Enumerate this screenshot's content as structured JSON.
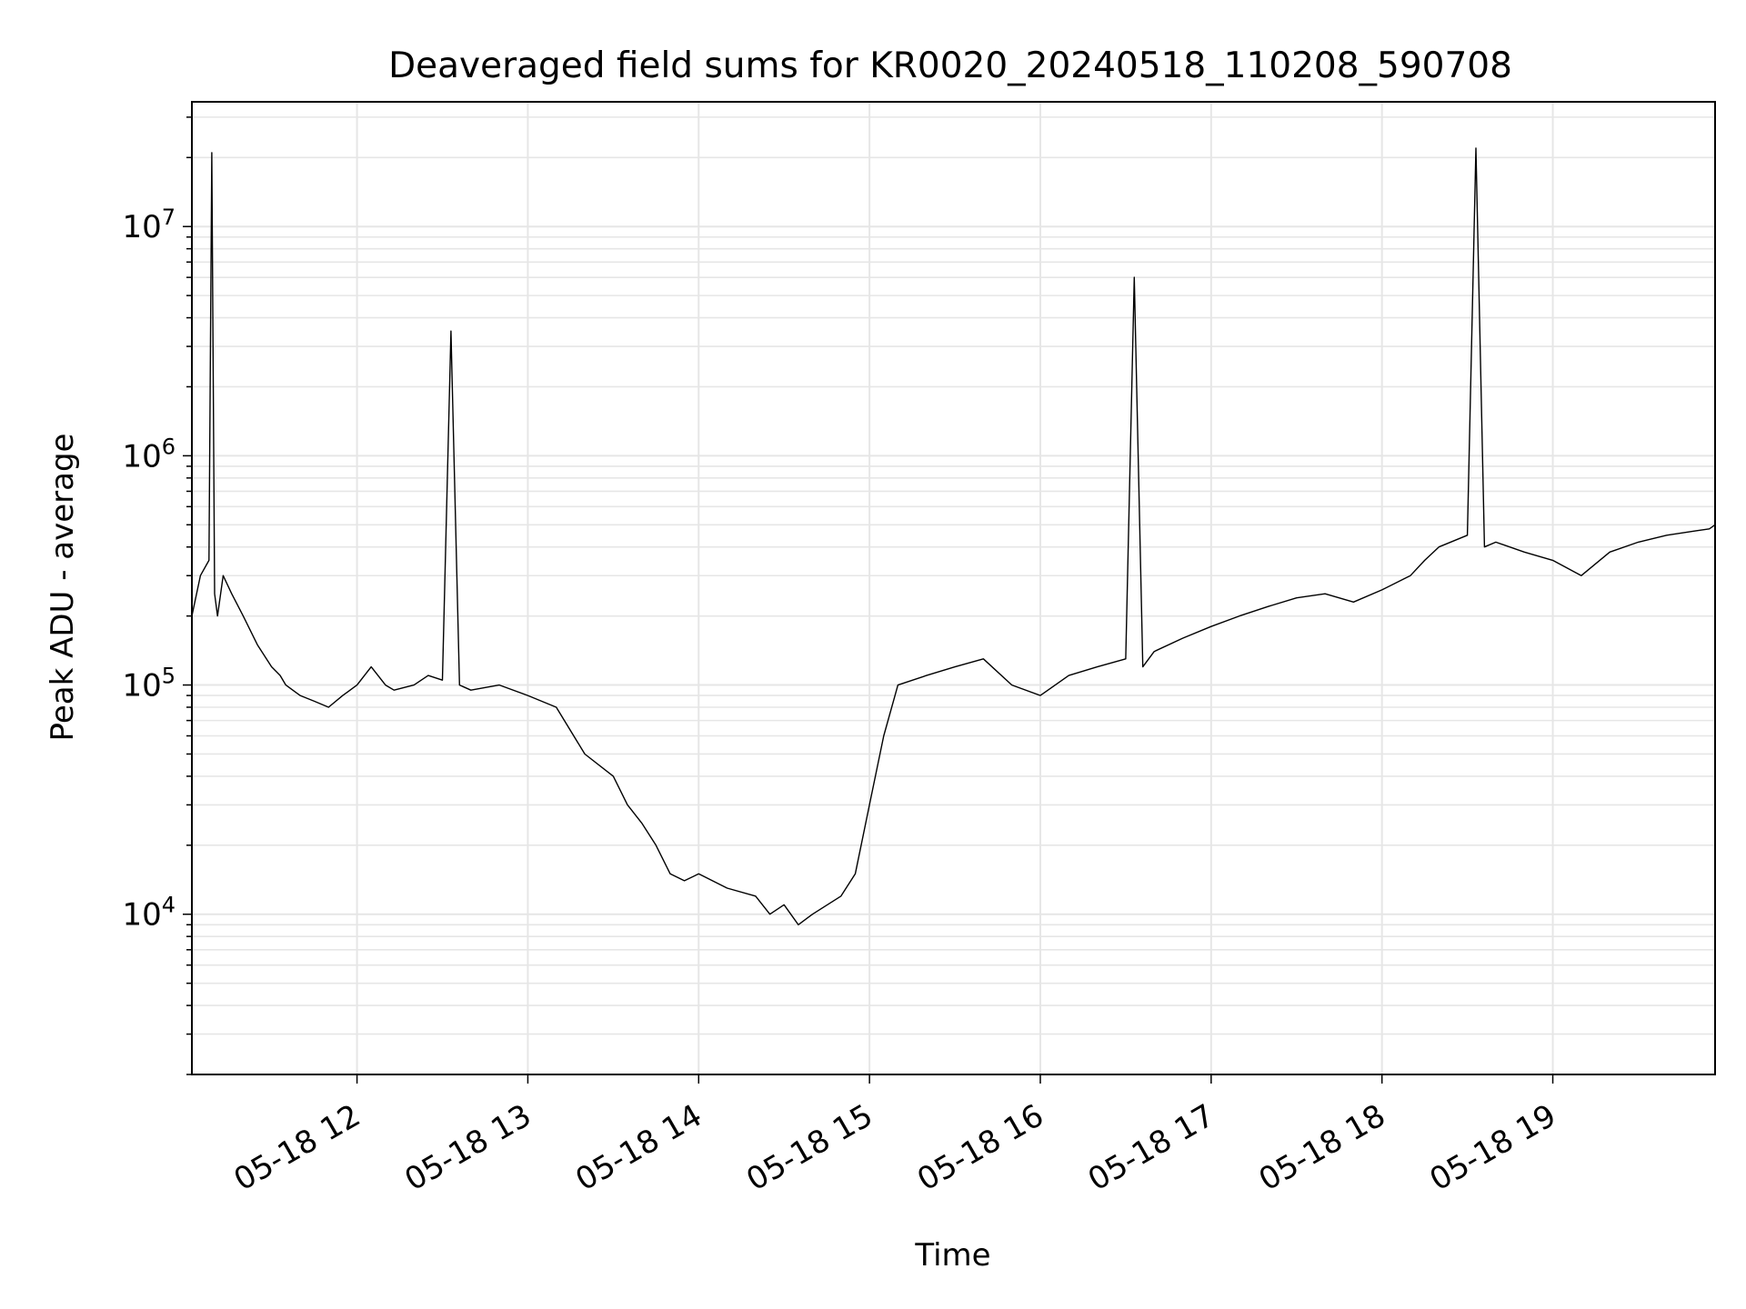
{
  "chart_data": {
    "type": "line",
    "title": "Deaveraged field sums for KR0020_20240518_110208_590708",
    "xlabel": "Time",
    "ylabel": "Peak ADU - average",
    "yscale": "log",
    "grid": true,
    "line_color": "#000000",
    "grid_color": "#e6e6e6",
    "xlim": [
      "2024-05-18 11:02",
      "2024-05-18 19:57"
    ],
    "ylim": [
      2000,
      35000000
    ],
    "x_ticks": [
      "05-18 12",
      "05-18 13",
      "05-18 14",
      "05-18 15",
      "05-18 16",
      "05-18 17",
      "05-18 18",
      "05-18 19"
    ],
    "y_ticks": [
      {
        "base": "10",
        "exp": "4",
        "value": 10000
      },
      {
        "base": "10",
        "exp": "5",
        "value": 100000
      },
      {
        "base": "10",
        "exp": "6",
        "value": 1000000
      },
      {
        "base": "10",
        "exp": "7",
        "value": 10000000
      }
    ],
    "series": [
      {
        "x": [
          "2024-05-18 11:02",
          "2024-05-18 11:05",
          "2024-05-18 11:08",
          "2024-05-18 11:09",
          "2024-05-18 11:10",
          "2024-05-18 11:11",
          "2024-05-18 11:13",
          "2024-05-18 11:16",
          "2024-05-18 11:20",
          "2024-05-18 11:25",
          "2024-05-18 11:30",
          "2024-05-18 11:33",
          "2024-05-18 11:35",
          "2024-05-18 11:40",
          "2024-05-18 11:45",
          "2024-05-18 11:50",
          "2024-05-18 11:55",
          "2024-05-18 12:00",
          "2024-05-18 12:05",
          "2024-05-18 12:10",
          "2024-05-18 12:13",
          "2024-05-18 12:20",
          "2024-05-18 12:25",
          "2024-05-18 12:30",
          "2024-05-18 12:33",
          "2024-05-18 12:36",
          "2024-05-18 12:40",
          "2024-05-18 12:50",
          "2024-05-18 13:00",
          "2024-05-18 13:10",
          "2024-05-18 13:20",
          "2024-05-18 13:30",
          "2024-05-18 13:35",
          "2024-05-18 13:40",
          "2024-05-18 13:45",
          "2024-05-18 13:50",
          "2024-05-18 13:55",
          "2024-05-18 14:00",
          "2024-05-18 14:10",
          "2024-05-18 14:20",
          "2024-05-18 14:25",
          "2024-05-18 14:30",
          "2024-05-18 14:35",
          "2024-05-18 14:40",
          "2024-05-18 14:50",
          "2024-05-18 14:55",
          "2024-05-18 15:00",
          "2024-05-18 15:05",
          "2024-05-18 15:10",
          "2024-05-18 15:20",
          "2024-05-18 15:30",
          "2024-05-18 15:40",
          "2024-05-18 15:50",
          "2024-05-18 16:00",
          "2024-05-18 16:10",
          "2024-05-18 16:20",
          "2024-05-18 16:30",
          "2024-05-18 16:33",
          "2024-05-18 16:36",
          "2024-05-18 16:40",
          "2024-05-18 16:50",
          "2024-05-18 17:00",
          "2024-05-18 17:10",
          "2024-05-18 17:20",
          "2024-05-18 17:30",
          "2024-05-18 17:40",
          "2024-05-18 17:50",
          "2024-05-18 18:00",
          "2024-05-18 18:10",
          "2024-05-18 18:15",
          "2024-05-18 18:20",
          "2024-05-18 18:30",
          "2024-05-18 18:33",
          "2024-05-18 18:36",
          "2024-05-18 18:40",
          "2024-05-18 18:50",
          "2024-05-18 19:00",
          "2024-05-18 19:10",
          "2024-05-18 19:20",
          "2024-05-18 19:30",
          "2024-05-18 19:40",
          "2024-05-18 19:50",
          "2024-05-18 19:55",
          "2024-05-18 19:57"
        ],
        "y": [
          200000,
          300000,
          350000,
          21000000,
          250000,
          200000,
          300000,
          250000,
          200000,
          150000,
          120000,
          110000,
          100000,
          90000,
          85000,
          80000,
          90000,
          100000,
          120000,
          100000,
          95000,
          100000,
          110000,
          105000,
          3500000,
          100000,
          95000,
          100000,
          90000,
          80000,
          50000,
          40000,
          30000,
          25000,
          20000,
          15000,
          14000,
          15000,
          13000,
          12000,
          10000,
          11000,
          9000,
          10000,
          12000,
          15000,
          30000,
          60000,
          100000,
          110000,
          120000,
          130000,
          100000,
          90000,
          110000,
          120000,
          130000,
          6000000,
          120000,
          140000,
          160000,
          180000,
          200000,
          220000,
          240000,
          250000,
          230000,
          260000,
          300000,
          350000,
          400000,
          450000,
          22000000,
          400000,
          420000,
          380000,
          350000,
          300000,
          380000,
          420000,
          450000,
          470000,
          480000,
          500000
        ]
      }
    ]
  }
}
